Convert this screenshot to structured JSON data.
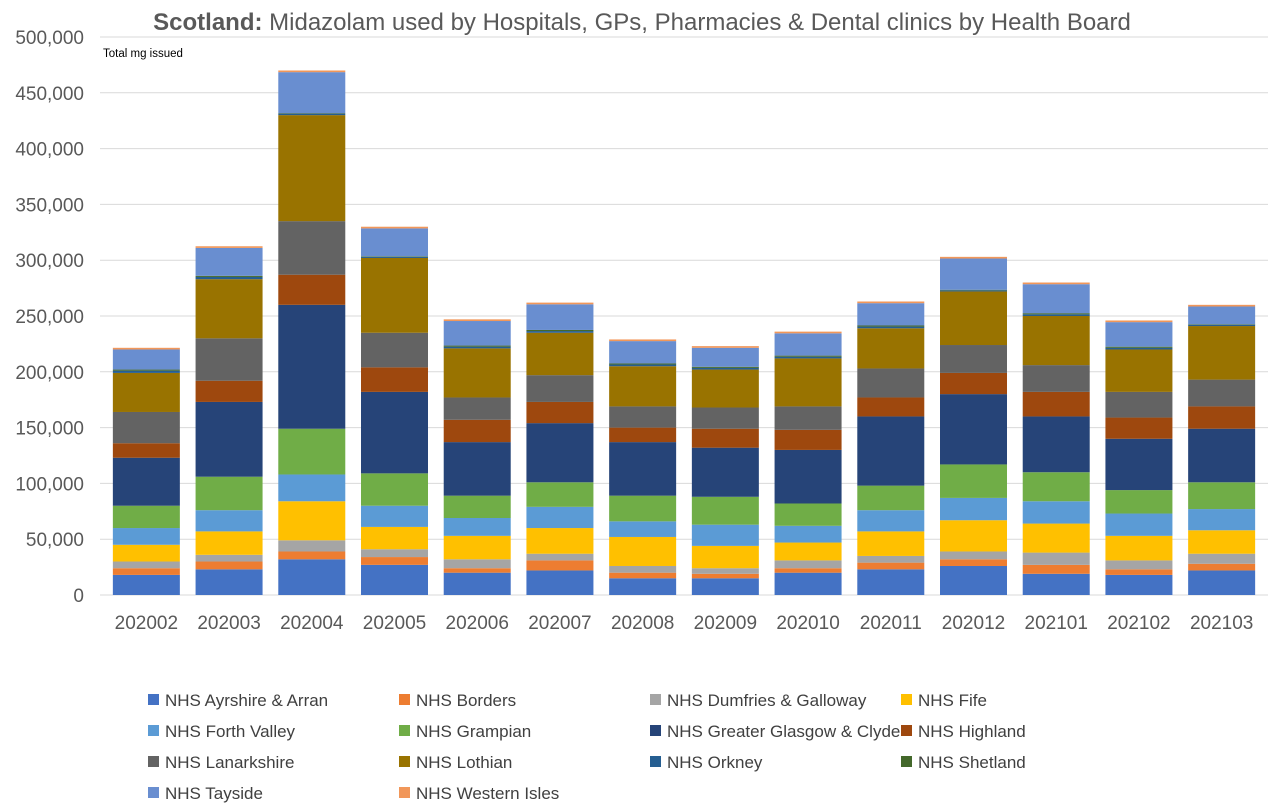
{
  "chart_data": {
    "type": "bar",
    "stacked": true,
    "title_bold": "Scotland:",
    "title_rest": " Midazolam used by Hospitals, GPs, Pharmacies & Dental clinics by Health Board",
    "units_label": "Total mg issued",
    "xlabel": "",
    "ylabel": "",
    "ylim": [
      0,
      500000
    ],
    "ytick_values": [
      0,
      50000,
      100000,
      150000,
      200000,
      250000,
      300000,
      350000,
      400000,
      450000,
      500000
    ],
    "ytick_labels": [
      "0",
      "50,000",
      "100,000",
      "150,000",
      "200,000",
      "250,000",
      "300,000",
      "350,000",
      "400,000",
      "450,000",
      "500,000"
    ],
    "grid": true,
    "legend_position": "bottom",
    "categories": [
      "202002",
      "202003",
      "202004",
      "202005",
      "202006",
      "202007",
      "202008",
      "202009",
      "202010",
      "202011",
      "202012",
      "202101",
      "202102",
      "202103"
    ],
    "series": [
      {
        "name": "NHS Ayrshire & Arran",
        "color": "#4472C4",
        "values": [
          18000,
          23000,
          32000,
          27000,
          20000,
          22000,
          15000,
          15000,
          20000,
          23000,
          26000,
          19000,
          18000,
          22000
        ]
      },
      {
        "name": "NHS Borders",
        "color": "#ED7D31",
        "values": [
          6000,
          7000,
          7000,
          7000,
          4000,
          9000,
          5000,
          4000,
          4000,
          6000,
          6000,
          8000,
          5000,
          6000
        ]
      },
      {
        "name": "NHS Dumfries & Galloway",
        "color": "#A5A5A5",
        "values": [
          6000,
          6000,
          10000,
          7000,
          8000,
          6000,
          6000,
          5000,
          7000,
          6000,
          7000,
          11000,
          8000,
          9000
        ]
      },
      {
        "name": "NHS Fife",
        "color": "#FFC000",
        "values": [
          15000,
          21000,
          35000,
          20000,
          21000,
          23000,
          26000,
          20000,
          16000,
          22000,
          28000,
          26000,
          22000,
          21000
        ]
      },
      {
        "name": "NHS Forth Valley",
        "color": "#5B9BD5",
        "values": [
          15000,
          19000,
          24000,
          19000,
          16000,
          19000,
          14000,
          19000,
          15000,
          19000,
          20000,
          20000,
          20000,
          19000
        ]
      },
      {
        "name": "NHS Grampian",
        "color": "#70AD47",
        "values": [
          20000,
          30000,
          41000,
          29000,
          20000,
          22000,
          23000,
          25000,
          20000,
          22000,
          30000,
          26000,
          21000,
          24000
        ]
      },
      {
        "name": "NHS Greater Glasgow & Clyde",
        "color": "#264478",
        "values": [
          43000,
          67000,
          111000,
          73000,
          48000,
          53000,
          48000,
          44000,
          48000,
          62000,
          63000,
          50000,
          46000,
          48000
        ]
      },
      {
        "name": "NHS Highland",
        "color": "#9E480E",
        "values": [
          13000,
          19000,
          27000,
          22000,
          20000,
          19000,
          13000,
          17000,
          18000,
          17000,
          19000,
          22000,
          19000,
          20000
        ]
      },
      {
        "name": "NHS Lanarkshire",
        "color": "#636363",
        "values": [
          28000,
          38000,
          48000,
          31000,
          20000,
          24000,
          19000,
          19000,
          21000,
          26000,
          25000,
          24000,
          23000,
          24000
        ]
      },
      {
        "name": "NHS Lothian",
        "color": "#997300",
        "values": [
          35000,
          53000,
          95000,
          67000,
          44000,
          38000,
          36000,
          34000,
          43000,
          36000,
          48000,
          44000,
          38000,
          48000
        ]
      },
      {
        "name": "NHS Orkney",
        "color": "#255E91",
        "values": [
          2000,
          2000,
          1000,
          1000,
          1500,
          1500,
          1500,
          1500,
          1500,
          1500,
          1000,
          1500,
          1500,
          1000
        ]
      },
      {
        "name": "NHS Shetland",
        "color": "#43682B",
        "values": [
          1000,
          1000,
          500,
          500,
          1000,
          1000,
          1000,
          1000,
          1000,
          1000,
          500,
          1000,
          1000,
          500
        ]
      },
      {
        "name": "NHS Tayside",
        "color": "#698ED0",
        "values": [
          18000,
          25000,
          37000,
          25000,
          22000,
          23000,
          20000,
          17000,
          20000,
          20000,
          28000,
          26000,
          22000,
          16000
        ]
      },
      {
        "name": "NHS Western Isles",
        "color": "#F1975A",
        "values": [
          1500,
          1500,
          1500,
          1500,
          1500,
          1500,
          1500,
          1500,
          1500,
          1500,
          1500,
          1500,
          1500,
          1500
        ]
      }
    ]
  }
}
